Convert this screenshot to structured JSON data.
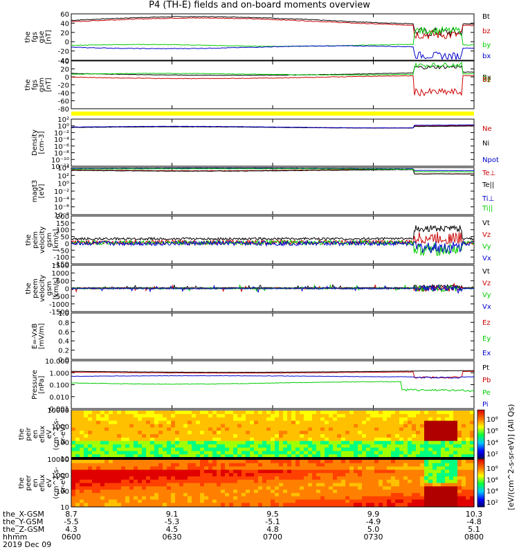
{
  "title": "P4 (TH-E) fields and on-board moments overview",
  "date_label": "2019 Dec 09",
  "xaxis": {
    "rows": [
      {
        "label": "the_X-GSM",
        "values": [
          "8.7",
          "9.1",
          "9.5",
          "9.9",
          "10.3"
        ]
      },
      {
        "label": "the_Y-GSM",
        "values": [
          "-5.5",
          "-5.3",
          "-5.1",
          "-4.9",
          "-4.8"
        ]
      },
      {
        "label": "the_Z-GSM",
        "values": [
          "4.3",
          "4.5",
          "4.8",
          "5.0",
          "5.1"
        ]
      },
      {
        "label": "hhmm",
        "values": [
          "0600",
          "0630",
          "0700",
          "0730",
          "0800"
        ]
      }
    ]
  },
  "colorbar_label": "[eV/(cm^2-s-sr-eV)] (All Qs)",
  "chart_data": [
    {
      "type": "line",
      "id": "fgs-gse",
      "ylabel": [
        "the",
        "fgs",
        "gse",
        "[nT]"
      ],
      "ylim": [
        -40,
        60
      ],
      "yticks": [
        "60",
        "40",
        "20",
        "0",
        "-20",
        "-40"
      ],
      "series": [
        {
          "name": "Bt",
          "color": "#000000"
        },
        {
          "name": "bz",
          "color": "#cc0000"
        },
        {
          "name": "by",
          "color": "#00cc00"
        },
        {
          "name": "bx",
          "color": "#0000cc"
        }
      ]
    },
    {
      "type": "line",
      "id": "fgs-gsm",
      "ylabel": [
        "the",
        "fgs",
        "gsm",
        "[nT]"
      ],
      "ylim": [
        -90,
        40
      ],
      "yticks": [
        "40",
        "20",
        "0",
        "-20",
        "-40",
        "-60",
        "-80"
      ],
      "series": [
        {
          "name": "Bx",
          "color": "#000000"
        },
        {
          "name": "By",
          "color": "#00cc00"
        },
        {
          "name": "Bz",
          "color": "#cc0000"
        }
      ]
    },
    {
      "type": "line",
      "id": "density",
      "ylabel": [
        "Density",
        "[cm-3]"
      ],
      "scale": "log",
      "ylim": [
        -12,
        3
      ],
      "yticks": [
        "10²",
        "10⁰",
        "10⁻²",
        "10⁻⁴",
        "10⁻⁶",
        "10⁻⁸",
        "10⁻¹⁰",
        "10⁻¹²"
      ],
      "series": [
        {
          "name": "Ne",
          "color": "#cc0000"
        },
        {
          "name": "Ni",
          "color": "#000000"
        },
        {
          "name": "Npot",
          "color": "#0000cc"
        }
      ]
    },
    {
      "type": "line",
      "id": "temperature",
      "ylabel": [
        "magt3",
        "[eV]"
      ],
      "scale": "log",
      "ylim": [
        -8,
        4
      ],
      "yticks": [
        "10⁴",
        "10²",
        "10⁰",
        "10⁻²",
        "10⁻⁴",
        "10⁻⁶",
        "10⁻⁸"
      ],
      "series": [
        {
          "name": "Te⊥",
          "color": "#cc0000"
        },
        {
          "name": "Te||",
          "color": "#000000"
        },
        {
          "name": "Ti⊥",
          "color": "#0000cc"
        },
        {
          "name": "Ti||",
          "color": "#00cc00"
        }
      ]
    },
    {
      "type": "line",
      "id": "peim-velocity",
      "ylabel": [
        "the",
        "peim",
        "velocity",
        "gsm",
        "[km/s]"
      ],
      "ylim": [
        -150,
        200
      ],
      "yticks": [
        "200",
        "150",
        "100",
        "50",
        "0",
        "-50",
        "-100",
        "-150"
      ],
      "series": [
        {
          "name": "Vt",
          "color": "#000000"
        },
        {
          "name": "Vz",
          "color": "#cc0000"
        },
        {
          "name": "Vy",
          "color": "#00cc00"
        },
        {
          "name": "Vx",
          "color": "#0000cc"
        }
      ]
    },
    {
      "type": "line",
      "id": "peem-velocity",
      "ylabel": [
        "the",
        "peem",
        "velocity",
        "gsm",
        "[km/s]"
      ],
      "ylim": [
        -1500,
        1500
      ],
      "yticks": [
        "1500",
        "1000",
        "500",
        "0",
        "-500",
        "-1000",
        "-1500"
      ],
      "series": [
        {
          "name": "Vt",
          "color": "#000000"
        },
        {
          "name": "Vz",
          "color": "#cc0000"
        },
        {
          "name": "Vy",
          "color": "#00cc00"
        },
        {
          "name": "Vx",
          "color": "#0000cc"
        }
      ]
    },
    {
      "type": "line",
      "id": "efield",
      "ylabel": [
        "E=-VxB",
        "[mV/m]"
      ],
      "ylim": [
        0,
        1
      ],
      "yticks": [
        "1.0",
        "0.8",
        "0.6",
        "0.4",
        "0.2",
        "0.0"
      ],
      "series": [
        {
          "name": "Ez",
          "color": "#cc0000"
        },
        {
          "name": "Ey",
          "color": "#00cc00"
        },
        {
          "name": "Ex",
          "color": "#0000cc"
        }
      ]
    },
    {
      "type": "line",
      "id": "pressure",
      "ylabel": [
        "Pressure",
        "[nPa]"
      ],
      "scale": "log",
      "ylim": [
        -3,
        1
      ],
      "yticks": [
        "10.000",
        "1.000",
        "0.100",
        "0.010",
        "0.001"
      ],
      "series": [
        {
          "name": "Pt",
          "color": "#000000"
        },
        {
          "name": "Pb",
          "color": "#cc0000"
        },
        {
          "name": "Pe",
          "color": "#00cc00"
        },
        {
          "name": "Pi",
          "color": "#0000cc"
        }
      ]
    },
    {
      "type": "heatmap",
      "id": "peir-spectrogram",
      "ylabel": [
        "the",
        "peir",
        "en",
        "eflux",
        "eV",
        "(cm^2-s-",
        "sr-eV)"
      ],
      "yticks": [
        "10000",
        "1000",
        "100",
        "10"
      ],
      "colorbar_ticks": [
        "10⁸",
        "10⁶",
        "10⁴",
        "10²"
      ]
    },
    {
      "type": "heatmap",
      "id": "peer-spectrogram",
      "ylabel": [
        "the",
        "peer",
        "en",
        "eflux",
        "eV",
        "(cm^2-s-",
        "sr-eV)"
      ],
      "yticks": [
        "10000",
        "1000",
        "100",
        "10"
      ],
      "colorbar_ticks": [
        "10⁸",
        "10⁶",
        "10⁴",
        "10²"
      ]
    }
  ]
}
